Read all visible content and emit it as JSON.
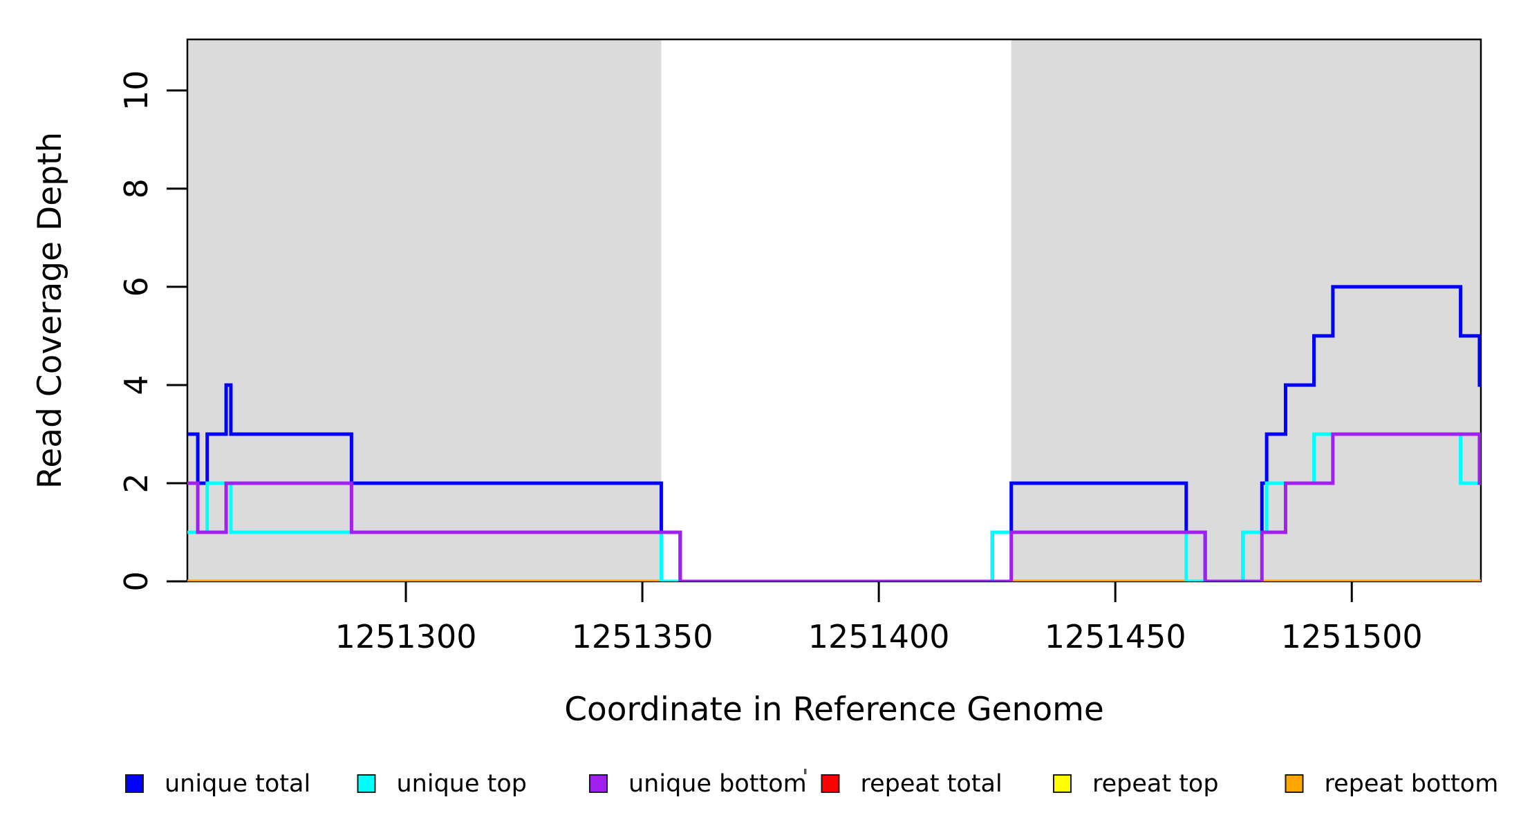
{
  "chart_data": {
    "type": "step-line",
    "title": "",
    "xlabel": "Coordinate in Reference Genome",
    "ylabel": "Read Coverage Depth",
    "xlim": [
      1251253.8,
      1251527.3
    ],
    "ylim": [
      0,
      11.04
    ],
    "x_ticks": [
      1251300,
      1251350,
      1251400,
      1251450,
      1251500
    ],
    "y_ticks": [
      0,
      2,
      4,
      6,
      8,
      10
    ],
    "grid": "off",
    "background_color": "#ffffff",
    "plot_border_color": "#000000",
    "shaded_regions": [
      {
        "name": "shaded-region-left",
        "from": 1251253.8,
        "to": 1251354,
        "color": "#DBDBDB"
      },
      {
        "name": "shaded-region-right",
        "from": 1251428,
        "to": 1251527.3,
        "color": "#DBDBDB"
      }
    ],
    "series": [
      {
        "name": "repeat total",
        "color": "#FF0000",
        "steps": [
          [
            1251253.8,
            0
          ]
        ]
      },
      {
        "name": "repeat top",
        "color": "#FFFF00",
        "steps": [
          [
            1251253.8,
            0
          ]
        ]
      },
      {
        "name": "repeat bottom",
        "color": "#FFA500",
        "steps": [
          [
            1251253.8,
            0
          ]
        ]
      },
      {
        "name": "unique total",
        "color": "#0000FF",
        "steps": [
          [
            1251253.8,
            3
          ],
          [
            1251256,
            2
          ],
          [
            1251258,
            3
          ],
          [
            1251262,
            4
          ],
          [
            1251263,
            3
          ],
          [
            1251288.5,
            2
          ],
          [
            1251354,
            1
          ],
          [
            1251358,
            0
          ],
          [
            1251424,
            1
          ],
          [
            1251428,
            2
          ],
          [
            1251465,
            1
          ],
          [
            1251469,
            0
          ],
          [
            1251477,
            1
          ],
          [
            1251481,
            2
          ],
          [
            1251482,
            3
          ],
          [
            1251486,
            4
          ],
          [
            1251492,
            5
          ],
          [
            1251496,
            6
          ],
          [
            1251523,
            5
          ],
          [
            1251527,
            4
          ]
        ]
      },
      {
        "name": "unique top",
        "color": "#00FFFF",
        "steps": [
          [
            1251253.8,
            1
          ],
          [
            1251258,
            2
          ],
          [
            1251263,
            1
          ],
          [
            1251354,
            0
          ],
          [
            1251424,
            1
          ],
          [
            1251465,
            0
          ],
          [
            1251477,
            1
          ],
          [
            1251482,
            2
          ],
          [
            1251492,
            3
          ],
          [
            1251523,
            2
          ]
        ]
      },
      {
        "name": "unique bottom",
        "color": "#A020F0",
        "steps": [
          [
            1251253.8,
            2
          ],
          [
            1251256,
            1
          ],
          [
            1251262,
            2
          ],
          [
            1251288.5,
            1
          ],
          [
            1251358,
            0
          ],
          [
            1251428,
            1
          ],
          [
            1251469,
            0
          ],
          [
            1251481,
            1
          ],
          [
            1251486,
            2
          ],
          [
            1251496,
            3
          ],
          [
            1251527,
            2
          ]
        ]
      }
    ],
    "legend": {
      "position": "bottom",
      "items": [
        {
          "label": "unique total",
          "color": "#0000FF"
        },
        {
          "label": "unique top",
          "color": "#00FFFF"
        },
        {
          "label": "unique bottom",
          "color": "#A020F0"
        },
        {
          "label": "repeat total",
          "color": "#FF0000"
        },
        {
          "label": "repeat top",
          "color": "#FFFF00"
        },
        {
          "label": "repeat bottom",
          "color": "#FFA500"
        }
      ]
    }
  }
}
